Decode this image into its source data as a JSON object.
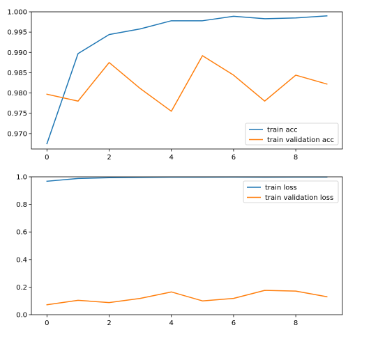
{
  "chart_data": [
    {
      "type": "line",
      "title": "",
      "xlabel": "",
      "ylabel": "",
      "xlim": [
        -0.5,
        9.5
      ],
      "ylim": [
        0.9662,
        1.0
      ],
      "grid": false,
      "legend_position": "lower-right",
      "x_ticks": [
        0,
        2,
        4,
        6,
        8
      ],
      "x_tick_labels": [
        "0",
        "2",
        "4",
        "6",
        "8"
      ],
      "y_ticks": [
        0.97,
        0.975,
        0.98,
        0.985,
        0.99,
        0.995,
        1.0
      ],
      "y_tick_labels": [
        "0.970",
        "0.975",
        "0.980",
        "0.985",
        "0.990",
        "0.995",
        "1.000"
      ],
      "x": [
        0,
        1,
        2,
        3,
        4,
        5,
        6,
        7,
        8,
        9
      ],
      "series": [
        {
          "name": "train acc",
          "color": "#1f77b4",
          "values": [
            0.9675,
            0.9897,
            0.9944,
            0.9958,
            0.9978,
            0.9978,
            0.9989,
            0.9983,
            0.9985,
            0.999
          ]
        },
        {
          "name": "train validation acc",
          "color": "#ff7f0e",
          "values": [
            0.9797,
            0.978,
            0.9875,
            0.9811,
            0.9755,
            0.9892,
            0.9844,
            0.978,
            0.9844,
            0.9822
          ]
        }
      ]
    },
    {
      "type": "line",
      "title": "",
      "xlabel": "",
      "ylabel": "",
      "xlim": [
        -0.5,
        9.5
      ],
      "ylim": [
        0.0,
        1.0
      ],
      "grid": false,
      "legend_position": "top-right",
      "x_ticks": [
        0,
        2,
        4,
        6,
        8
      ],
      "x_tick_labels": [
        "0",
        "2",
        "4",
        "6",
        "8"
      ],
      "y_ticks": [
        0.0,
        0.2,
        0.4,
        0.6,
        0.8,
        1.0
      ],
      "y_tick_labels": [
        "0.0",
        "0.2",
        "0.4",
        "0.6",
        "0.8",
        "1.0"
      ],
      "x": [
        0,
        1,
        2,
        3,
        4,
        5,
        6,
        7,
        8,
        9
      ],
      "series": [
        {
          "name": "train loss",
          "color": "#1f77b4",
          "values": [
            0.968,
            0.988,
            0.994,
            0.996,
            0.998,
            0.998,
            0.999,
            0.998,
            0.999,
            0.999
          ]
        },
        {
          "name": "train validation loss",
          "color": "#ff7f0e",
          "values": [
            0.072,
            0.104,
            0.088,
            0.118,
            0.165,
            0.1,
            0.118,
            0.176,
            0.171,
            0.13
          ]
        }
      ]
    }
  ]
}
